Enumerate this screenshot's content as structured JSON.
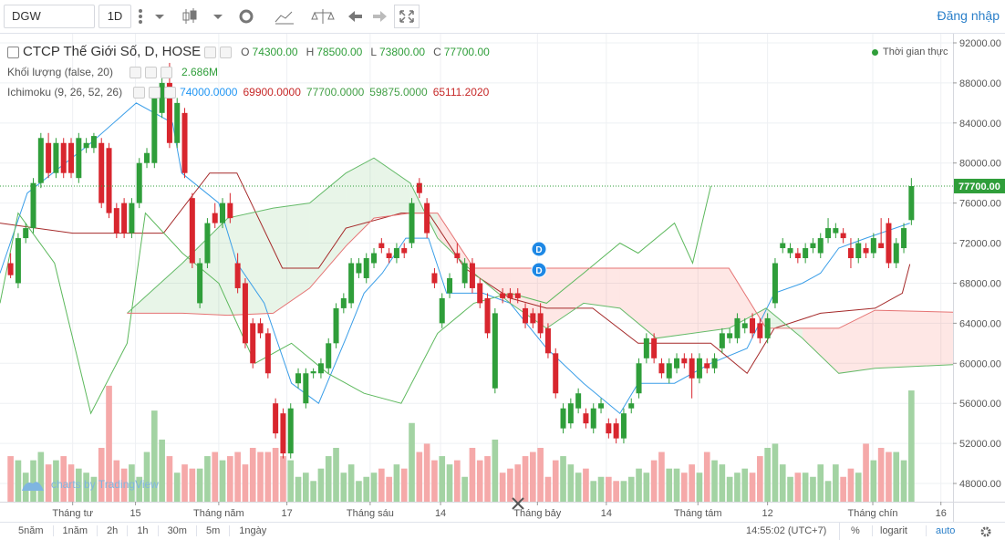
{
  "toolbar": {
    "symbol": "DGW",
    "interval": "1D",
    "login": "Đăng nhập"
  },
  "chart_data": {
    "type": "candlestick",
    "title": "CTCP Thế Giới Số, D, HOSE",
    "ohlc": [
      {
        "key": "O",
        "label": "74300.00"
      },
      {
        "key": "H",
        "label": "78500.00"
      },
      {
        "key": "L",
        "label": "73800.00"
      },
      {
        "key": "C",
        "label": "77700.00"
      }
    ],
    "realtime_label": "Thời gian thực",
    "up_color": "#2f9e3a",
    "down_color": "#d8262e",
    "candles": [
      [
        70000,
        71000,
        68500,
        68800
      ],
      [
        68000,
        73000,
        67500,
        72500
      ],
      [
        72500,
        74000,
        72000,
        73500
      ],
      [
        73500,
        78500,
        73000,
        78000
      ],
      [
        78000,
        83000,
        77500,
        82500
      ],
      [
        82000,
        83000,
        78500,
        79000
      ],
      [
        79000,
        82500,
        78500,
        82000
      ],
      [
        82000,
        82500,
        78500,
        79000
      ],
      [
        82000,
        82500,
        78500,
        79000
      ],
      [
        78500,
        83000,
        78000,
        82500
      ],
      [
        81500,
        82500,
        81000,
        82000
      ],
      [
        81500,
        83000,
        81000,
        82700
      ],
      [
        82000,
        82500,
        75500,
        76000
      ],
      [
        81500,
        82000,
        74500,
        75000
      ],
      [
        75500,
        76000,
        72500,
        73000
      ],
      [
        76000,
        76500,
        72500,
        73000
      ],
      [
        73000,
        76500,
        72500,
        76000
      ],
      [
        76000,
        80500,
        75500,
        80000
      ],
      [
        80000,
        81500,
        79500,
        81000
      ],
      [
        80000,
        87500,
        79500,
        87000
      ],
      [
        85000,
        88500,
        84500,
        88000
      ],
      [
        88000,
        90000,
        81500,
        82000
      ],
      [
        82000,
        86500,
        81500,
        86000
      ],
      [
        85000,
        85500,
        78500,
        79000
      ],
      [
        76500,
        77000,
        69500,
        70000
      ],
      [
        66000,
        70500,
        65500,
        70000
      ],
      [
        70000,
        74500,
        69500,
        74000
      ],
      [
        75000,
        76000,
        73500,
        74000
      ],
      [
        74000,
        76500,
        73500,
        76000
      ],
      [
        76000,
        77000,
        74000,
        74500
      ],
      [
        70000,
        71000,
        67000,
        67500
      ],
      [
        68000,
        68500,
        61500,
        62000
      ],
      [
        64000,
        64500,
        59500,
        60000
      ],
      [
        64000,
        64500,
        62500,
        63000
      ],
      [
        63000,
        63500,
        58500,
        59000
      ],
      [
        56000,
        56500,
        52500,
        53000
      ],
      [
        55000,
        55500,
        50500,
        51000
      ],
      [
        51000,
        56000,
        50500,
        55500
      ],
      [
        58000,
        59500,
        57500,
        59000
      ],
      [
        56000,
        59500,
        55500,
        59000
      ],
      [
        59000,
        59500,
        58500,
        59200
      ],
      [
        59000,
        60500,
        58500,
        60000
      ],
      [
        59500,
        62500,
        59000,
        62000
      ],
      [
        62000,
        66000,
        61500,
        65500
      ],
      [
        65500,
        67000,
        65000,
        66500
      ],
      [
        66000,
        70500,
        65500,
        70000
      ],
      [
        69000,
        70500,
        68500,
        70000
      ],
      [
        68500,
        71000,
        68000,
        70500
      ],
      [
        70000,
        71500,
        69500,
        71000
      ],
      [
        72000,
        72500,
        71000,
        71500
      ],
      [
        71000,
        71500,
        70000,
        70500
      ],
      [
        70500,
        72000,
        70000,
        71500
      ],
      [
        71500,
        72000,
        70500,
        71000
      ],
      [
        72000,
        76500,
        71500,
        76000
      ],
      [
        78000,
        78500,
        76500,
        77000
      ],
      [
        76000,
        76500,
        72500,
        73000
      ],
      [
        69000,
        69500,
        67500,
        68000
      ],
      [
        64000,
        67000,
        63500,
        66500
      ],
      [
        67000,
        69000,
        66500,
        68500
      ],
      [
        71000,
        72000,
        70000,
        70500
      ],
      [
        68000,
        70500,
        67500,
        70000
      ],
      [
        70000,
        70500,
        67000,
        67500
      ],
      [
        68000,
        68500,
        65500,
        66000
      ],
      [
        66500,
        67000,
        62500,
        63000
      ],
      [
        57500,
        65500,
        57000,
        65000
      ],
      [
        67000,
        67500,
        66000,
        66500
      ],
      [
        67000,
        67500,
        66000,
        66500
      ],
      [
        67000,
        67500,
        66000,
        66500
      ],
      [
        65500,
        66000,
        63500,
        64000
      ],
      [
        65000,
        65500,
        63500,
        64000
      ],
      [
        65000,
        66000,
        62500,
        63000
      ],
      [
        63500,
        64000,
        60500,
        61000
      ],
      [
        61000,
        61500,
        56500,
        57000
      ],
      [
        53500,
        56000,
        53000,
        55500
      ],
      [
        54000,
        56500,
        53500,
        56000
      ],
      [
        55500,
        57500,
        55000,
        57000
      ],
      [
        55000,
        55500,
        53500,
        54000
      ],
      [
        53500,
        56000,
        53000,
        55500
      ],
      [
        55500,
        56500,
        55000,
        56000
      ],
      [
        54000,
        54500,
        52500,
        53000
      ],
      [
        54000,
        54500,
        52000,
        52500
      ],
      [
        52500,
        55500,
        52000,
        55000
      ],
      [
        55500,
        56500,
        55000,
        56000
      ],
      [
        57000,
        60500,
        56500,
        60000
      ],
      [
        60500,
        63000,
        60000,
        62500
      ],
      [
        62500,
        63000,
        60000,
        60500
      ],
      [
        60000,
        60500,
        58500,
        59000
      ],
      [
        58500,
        60500,
        58000,
        60000
      ],
      [
        59500,
        61000,
        59000,
        60500
      ],
      [
        60500,
        61000,
        59500,
        60000
      ],
      [
        60500,
        61000,
        56500,
        58500
      ],
      [
        58500,
        61000,
        58000,
        60500
      ],
      [
        60000,
        60500,
        59000,
        59500
      ],
      [
        59500,
        61000,
        59000,
        60500
      ],
      [
        61500,
        63500,
        61000,
        63000
      ],
      [
        62500,
        63500,
        62000,
        63000
      ],
      [
        62500,
        65000,
        62000,
        64500
      ],
      [
        63500,
        64500,
        63000,
        64000
      ],
      [
        64500,
        65000,
        62500,
        63000
      ],
      [
        64000,
        64500,
        62000,
        62500
      ],
      [
        62500,
        65000,
        62000,
        64500
      ],
      [
        66000,
        70500,
        65500,
        70000
      ],
      [
        71500,
        72500,
        71000,
        72000
      ],
      [
        71000,
        72000,
        70500,
        71500
      ],
      [
        71000,
        71500,
        70000,
        70500
      ],
      [
        70500,
        72000,
        70000,
        71500
      ],
      [
        71500,
        72500,
        71000,
        72000
      ],
      [
        71000,
        73000,
        70500,
        72500
      ],
      [
        72500,
        74500,
        72000,
        73500
      ],
      [
        73000,
        74000,
        72500,
        73500
      ],
      [
        73000,
        73500,
        72000,
        72500
      ],
      [
        71500,
        72500,
        69500,
        70500
      ],
      [
        70500,
        72500,
        70000,
        72000
      ],
      [
        71500,
        72000,
        70500,
        71000
      ],
      [
        71000,
        73000,
        70500,
        72500
      ],
      [
        72000,
        74500,
        71500,
        71500
      ],
      [
        74000,
        74500,
        69500,
        70000
      ],
      [
        70000,
        72500,
        69500,
        72000
      ],
      [
        71500,
        74000,
        71000,
        73500
      ],
      [
        74300,
        78500,
        73800,
        77700
      ]
    ],
    "volume": {
      "name": "Khối lượng (false, 20)",
      "value_label": "2.686M",
      "up_color": "#a3d3a3",
      "down_color": "#f5a9a9",
      "ylim": [
        0,
        11.3
      ],
      "values": [
        1.1,
        1.0,
        0.7,
        1.0,
        1.2,
        0.9,
        1.0,
        1.1,
        0.9,
        0.8,
        0.7,
        0.6,
        1.3,
        2.8,
        1.0,
        0.8,
        0.9,
        0.6,
        1.2,
        2.2,
        1.5,
        1.1,
        0.7,
        0.9,
        0.8,
        0.8,
        1.1,
        1.2,
        1.0,
        1.1,
        1.2,
        0.9,
        1.3,
        1.2,
        1.2,
        1.3,
        1.1,
        1.0,
        0.6,
        0.7,
        0.5,
        0.8,
        1.1,
        1.3,
        0.7,
        0.9,
        0.5,
        0.6,
        0.7,
        0.8,
        0.6,
        0.9,
        0.8,
        1.9,
        1.2,
        1.4,
        1.0,
        1.1,
        0.9,
        1.0,
        0.6,
        1.3,
        1.0,
        1.1,
        1.5,
        0.7,
        0.8,
        0.9,
        1.1,
        1.2,
        1.3,
        0.6,
        1.0,
        1.1,
        0.9,
        0.7,
        0.8,
        0.5,
        0.6,
        0.6,
        0.5,
        0.5,
        0.6,
        0.8,
        0.7,
        1.0,
        1.2,
        0.8,
        0.8,
        0.7,
        0.9,
        0.7,
        1.2,
        1.0,
        0.9,
        0.6,
        0.7,
        0.8,
        0.7,
        1.1,
        1.3,
        1.4,
        0.9,
        0.6,
        0.7,
        0.7,
        0.6,
        0.9,
        0.5,
        0.9,
        0.6,
        0.8,
        0.7,
        1.4,
        1.0,
        1.3,
        1.2,
        1.2,
        1.0,
        2.686
      ]
    },
    "ichimoku": {
      "name": "Ichimoku (9, 26, 52, 26)",
      "value_labels": [
        {
          "label": "74000.0000",
          "color": "#2196f3"
        },
        {
          "label": "69900.0000",
          "color": "#c62828"
        },
        {
          "label": "77700.0000",
          "color": "#43a047"
        },
        {
          "label": "59875.0000",
          "color": "#43a047"
        },
        {
          "label": "65111.2020",
          "color": "#c62828"
        }
      ],
      "tenkan": {
        "color": "#3a9ee8",
        "x": [
          -1.4,
          2.2,
          10.6,
          16.6,
          21.4,
          22.6,
          27.5,
          29.9,
          33.5,
          37.1,
          40.7,
          44.3,
          46.7,
          49.1,
          52.2,
          55.2,
          57.6,
          62.4,
          66,
          70.8,
          75.7,
          80.5,
          82.9,
          87.7,
          92.5,
          97.3,
          100.9,
          104.6,
          107,
          109.4,
          113,
          118.8
        ],
        "values": [
          69000,
          77000,
          82000,
          86000,
          84000,
          79000,
          76000,
          70000,
          66000,
          58000,
          56000,
          62500,
          67000,
          69000,
          72500,
          72500,
          67000,
          67000,
          66000,
          61500,
          58000,
          55000,
          58000,
          58000,
          60000,
          61500,
          67000,
          68000,
          69000,
          71500,
          72500,
          74000
        ]
      },
      "kijun": {
        "color": "#a52a2a",
        "x": [
          -1.4,
          8.2,
          20.2,
          26.3,
          29.9,
          35.9,
          40.7,
          44.3,
          51.6,
          55.2,
          60,
          66,
          70.8,
          76.9,
          82.9,
          92.5,
          97.3,
          100.9,
          107,
          114.2,
          117.8,
          118.8
        ],
        "values": [
          74000,
          73000,
          73000,
          79000,
          79000,
          69500,
          69500,
          73500,
          75000,
          75000,
          69500,
          66500,
          65500,
          65500,
          62000,
          62000,
          59000,
          63500,
          65000,
          65500,
          67000,
          69900
        ]
      },
      "chikou": {
        "color": "#5cb85c",
        "x": [
          -1.4,
          1,
          5.8,
          10.6,
          15.4,
          17.8,
          22.7,
          27.5,
          32.3,
          37.1,
          41.9,
          46.7,
          51.6,
          56.4,
          61.2,
          66,
          70.8,
          75.7,
          80.5,
          82.9,
          87.7,
          90.1,
          92.5
        ],
        "values": [
          66000,
          75000,
          70000,
          55000,
          62000,
          75000,
          71000,
          68000,
          60000,
          62000,
          59000,
          57000,
          56000,
          63000,
          66000,
          67000,
          66000,
          69000,
          72000,
          71000,
          74000,
          70000,
          77700
        ]
      },
      "span_x": [
        15.4,
        22.7,
        28.7,
        34.7,
        39.5,
        44.3,
        48,
        52.8,
        56.4,
        61.2,
        66,
        70.8,
        75.7,
        80.5,
        85.3,
        94.9,
        99.8,
        104.6,
        109.4,
        114.2,
        124.5
      ],
      "span_a": {
        "color": "#66bb6a",
        "values": [
          65000,
          70000,
          74500,
          75500,
          76000,
          79000,
          80500,
          78000,
          72500,
          69000,
          66000,
          63500,
          66000,
          65500,
          62500,
          63500,
          65500,
          62500,
          59000,
          59500,
          59875
        ]
      },
      "span_b": {
        "color": "#e57373",
        "values": [
          65000,
          65000,
          64800,
          65000,
          67500,
          71700,
          74500,
          75000,
          75000,
          69500,
          69500,
          69500,
          69500,
          69500,
          69500,
          69500,
          63500,
          63500,
          63500,
          65300,
          65111.202
        ]
      },
      "cloud_up_color": "rgba(76,175,80,0.13)",
      "cloud_down_color": "rgba(244,67,54,0.13)"
    },
    "xlim": [
      -1.4,
      124.5
    ],
    "xticks": [
      {
        "value": 8.2,
        "label": "Tháng tư"
      },
      {
        "value": 16.5,
        "label": "15"
      },
      {
        "value": 27.5,
        "label": "Tháng năm"
      },
      {
        "value": 36.5,
        "label": "17"
      },
      {
        "value": 47.5,
        "label": "Tháng sáu"
      },
      {
        "value": 56.8,
        "label": "14"
      },
      {
        "value": 69.6,
        "label": "Tháng bảy"
      },
      {
        "value": 78.7,
        "label": "14"
      },
      {
        "value": 90.8,
        "label": "Tháng tám"
      },
      {
        "value": 100,
        "label": "12"
      },
      {
        "value": 113.9,
        "label": "Tháng chín"
      },
      {
        "value": 122.9,
        "label": "16"
      }
    ],
    "ylim": [
      46180,
      92910
    ],
    "yticks": [
      {
        "value": 92000,
        "label": "92000.00"
      },
      {
        "value": 88000,
        "label": "88000.00"
      },
      {
        "value": 84000,
        "label": "84000.00"
      },
      {
        "value": 80000,
        "label": "80000.00"
      },
      {
        "value": 76000,
        "label": "76000.00"
      },
      {
        "value": 72000,
        "label": "72000.00"
      },
      {
        "value": 68000,
        "label": "68000.00"
      },
      {
        "value": 64000,
        "label": "64000.00"
      },
      {
        "value": 60000,
        "label": "60000.00"
      },
      {
        "value": 56000,
        "label": "56000.00"
      },
      {
        "value": 52000,
        "label": "52000.00"
      },
      {
        "value": 48000,
        "label": "48000.00"
      }
    ],
    "last_price": {
      "value": 77700,
      "label": "77700.00",
      "color": "#2f9e3a"
    },
    "grid": true,
    "event_markers": [
      "D",
      "D"
    ],
    "watermark": "charts by TradingView"
  },
  "footer": {
    "ranges": [
      "5năm",
      "1năm",
      "2h",
      "1h",
      "30m",
      "5m",
      "1ngày"
    ],
    "time": "14:55:02 (UTC+7)",
    "percent": "%",
    "log": "logarit",
    "auto": "auto"
  }
}
